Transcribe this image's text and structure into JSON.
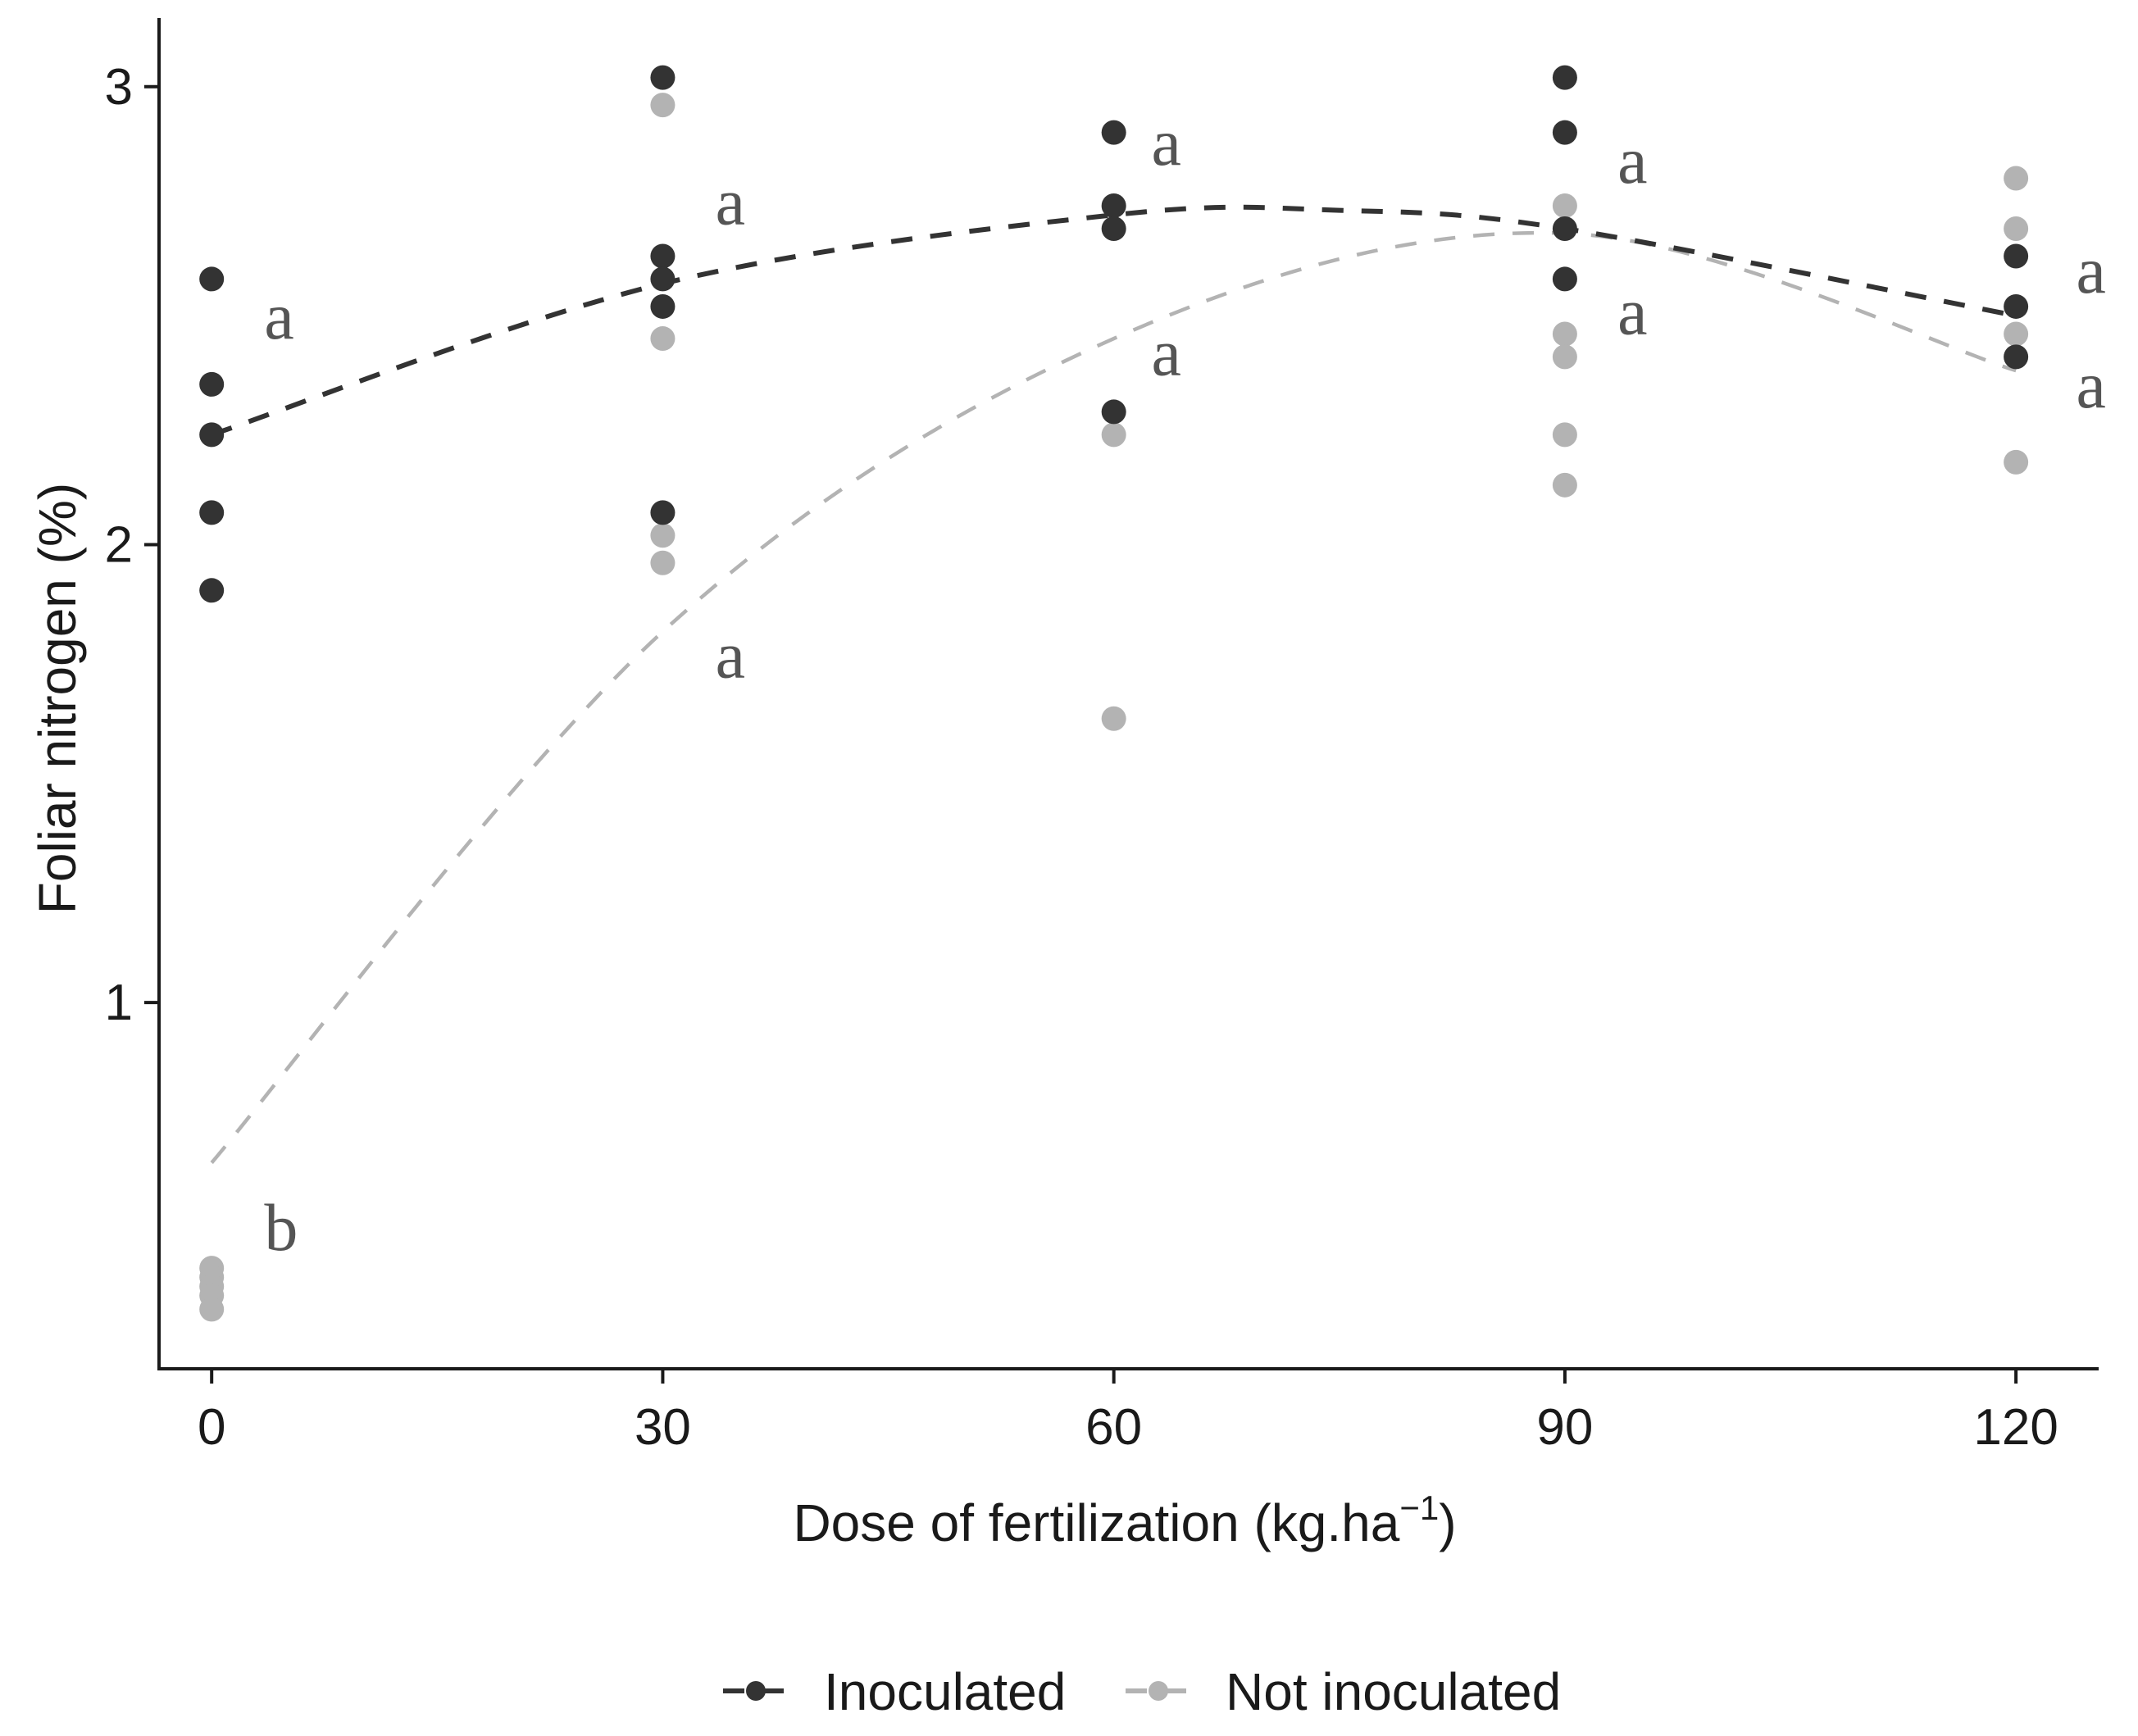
{
  "colors": {
    "inoculated": "#333333",
    "not_inoculated": "#b3b3b3",
    "axis": "#1a1a1a",
    "letters": "#555555"
  },
  "chart_data": {
    "type": "scatter",
    "xlabel": "Dose of fertilization (kg.ha",
    "xlabel_superscript": "−1",
    "xlabel_close": ")",
    "ylabel": "Foliar nitrogen (%)",
    "xlim": [
      -3.5,
      125.5
    ],
    "ylim": [
      0.2,
      3.15
    ],
    "x_ticks": [
      0,
      30,
      60,
      90,
      120
    ],
    "x_tick_labels": [
      "0",
      "30",
      "60",
      "90",
      "120"
    ],
    "y_ticks": [
      1,
      2,
      3
    ],
    "y_tick_labels": [
      "1",
      "2",
      "3"
    ],
    "grid": false,
    "legend_position": "bottom",
    "series": [
      {
        "name": "Inoculated",
        "color_key": "inoculated",
        "points": [
          [
            0,
            2.58
          ],
          [
            0,
            2.35
          ],
          [
            0,
            2.24
          ],
          [
            0,
            2.07
          ],
          [
            0,
            1.9
          ],
          [
            30,
            3.02
          ],
          [
            30,
            2.63
          ],
          [
            30,
            2.58
          ],
          [
            30,
            2.52
          ],
          [
            30,
            2.07
          ],
          [
            60,
            2.9
          ],
          [
            60,
            2.74
          ],
          [
            60,
            2.69
          ],
          [
            60,
            2.29
          ],
          [
            90,
            3.02
          ],
          [
            90,
            2.9
          ],
          [
            90,
            2.69
          ],
          [
            90,
            2.58
          ],
          [
            120,
            2.63
          ],
          [
            120,
            2.52
          ],
          [
            120,
            2.41
          ]
        ],
        "trend": [
          [
            0,
            2.24
          ],
          [
            30,
            2.57
          ],
          [
            60,
            2.72
          ],
          [
            75,
            2.73
          ],
          [
            90,
            2.69
          ],
          [
            120,
            2.5
          ]
        ],
        "dash": "26,22",
        "stroke_width": 6
      },
      {
        "name": "Not inoculated",
        "color_key": "not_inoculated",
        "points": [
          [
            0,
            0.42
          ],
          [
            0,
            0.4
          ],
          [
            0,
            0.38
          ],
          [
            0,
            0.36
          ],
          [
            0,
            0.33
          ],
          [
            30,
            2.96
          ],
          [
            30,
            2.45
          ],
          [
            30,
            2.02
          ],
          [
            30,
            1.96
          ],
          [
            60,
            2.24
          ],
          [
            60,
            1.62
          ],
          [
            90,
            2.74
          ],
          [
            90,
            2.46
          ],
          [
            90,
            2.41
          ],
          [
            90,
            2.24
          ],
          [
            90,
            2.13
          ],
          [
            120,
            2.8
          ],
          [
            120,
            2.69
          ],
          [
            120,
            2.46
          ],
          [
            120,
            2.18
          ]
        ],
        "trend": [
          [
            0,
            0.65
          ],
          [
            30,
            1.81
          ],
          [
            60,
            2.45
          ],
          [
            90,
            2.68
          ],
          [
            120,
            2.38
          ]
        ],
        "dash": "26,22",
        "stroke_width": 4.5
      }
    ],
    "annotations": [
      {
        "text": "a",
        "x": 3.5,
        "y": 2.45
      },
      {
        "text": "a",
        "x": 33.5,
        "y": 2.7
      },
      {
        "text": "a",
        "x": 62.5,
        "y": 2.83
      },
      {
        "text": "a",
        "x": 93.5,
        "y": 2.79
      },
      {
        "text": "a",
        "x": 124,
        "y": 2.55
      },
      {
        "text": "b",
        "x": 3.5,
        "y": 0.46
      },
      {
        "text": "a",
        "x": 33.5,
        "y": 1.71
      },
      {
        "text": "a",
        "x": 62.5,
        "y": 2.37
      },
      {
        "text": "a",
        "x": 93.5,
        "y": 2.46
      },
      {
        "text": "a",
        "x": 124,
        "y": 2.3
      }
    ]
  },
  "legend": {
    "items": [
      {
        "label": "Inoculated",
        "color_key": "inoculated"
      },
      {
        "label": "Not inoculated",
        "color_key": "not_inoculated"
      }
    ]
  }
}
